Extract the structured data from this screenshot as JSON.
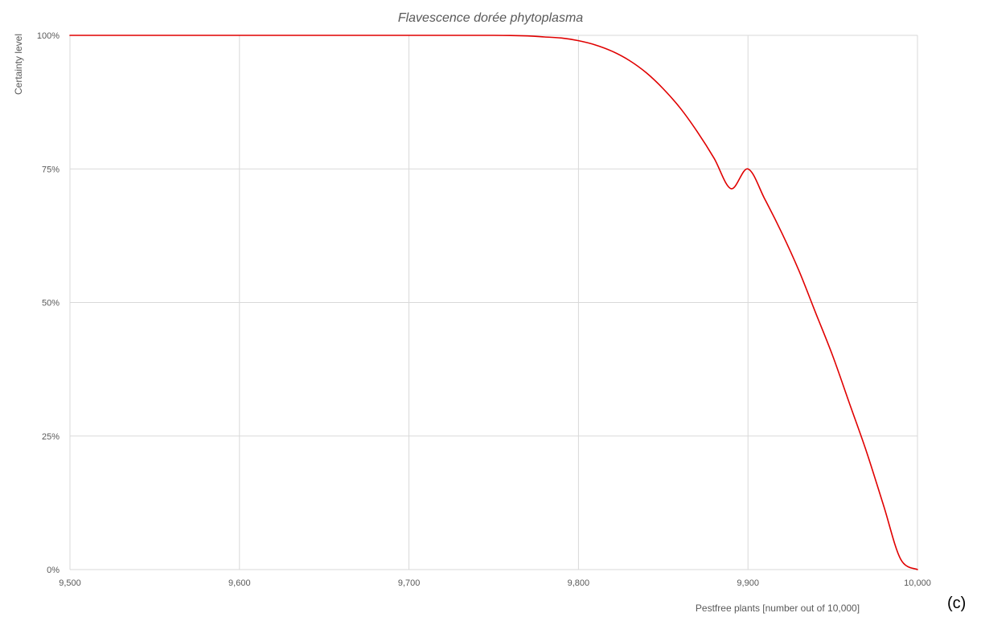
{
  "panel_label": "(c)",
  "chart_data": {
    "type": "line",
    "title": "Flavescence dorée phytoplasma",
    "xlabel": "Pestfree plants [number out of 10,000]",
    "ylabel": "Certainty level",
    "xlim": [
      9500,
      10000
    ],
    "ylim": [
      0,
      1
    ],
    "x_ticks": [
      9500,
      9600,
      9700,
      9800,
      9900,
      10000
    ],
    "x_tick_labels": [
      "9,500",
      "9,600",
      "9,700",
      "9,800",
      "9,900",
      "10,000"
    ],
    "y_ticks": [
      0,
      0.25,
      0.5,
      0.75,
      1
    ],
    "y_tick_labels": [
      "0%",
      "25%",
      "50%",
      "75%",
      "100%"
    ],
    "grid": true,
    "legend": "none",
    "series": [
      {
        "color": "#e00000",
        "x": [
          9500,
          9600,
          9700,
          9750,
          9770,
          9780,
          9790,
          9800,
          9810,
          9820,
          9830,
          9840,
          9850,
          9860,
          9870,
          9880,
          9890,
          9900,
          9910,
          9920,
          9930,
          9940,
          9950,
          9960,
          9970,
          9980,
          9990,
          10000
        ],
        "y": [
          1.0,
          1.0,
          1.0,
          1.0,
          0.999,
          0.997,
          0.995,
          0.99,
          0.982,
          0.97,
          0.953,
          0.93,
          0.9,
          0.864,
          0.82,
          0.77,
          0.713,
          0.75,
          0.693,
          0.63,
          0.56,
          0.48,
          0.4,
          0.31,
          0.22,
          0.12,
          0.02,
          0.0
        ]
      }
    ]
  }
}
